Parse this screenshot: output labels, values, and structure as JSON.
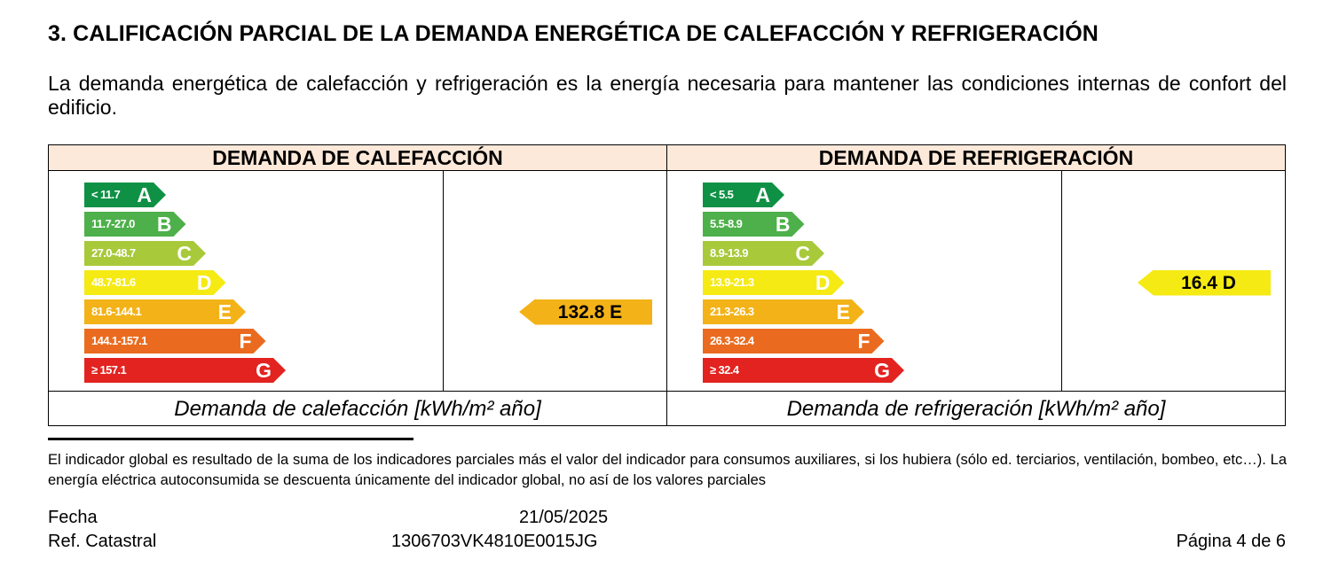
{
  "section_title": "3. CALIFICACIÓN PARCIAL DE LA DEMANDA ENERGÉTICA DE CALEFACCIÓN Y REFRIGERACIÓN",
  "intro": "La demanda energética de calefacción y refrigeración es la energía necesaria para mantener las condiciones internas de confort del edificio.",
  "heating": {
    "header": "DEMANDA DE CALEFACCIÓN",
    "footer": "Demanda de calefacción [kWh/m² año]",
    "bands": [
      {
        "range": "< 11.7",
        "letter": "A",
        "color": "#0f9145"
      },
      {
        "range": "11.7-27.0",
        "letter": "B",
        "color": "#4db04a"
      },
      {
        "range": "27.0-48.7",
        "letter": "C",
        "color": "#a8c93a"
      },
      {
        "range": "48.7-81.6",
        "letter": "D",
        "color": "#f5ea14"
      },
      {
        "range": "81.6-144.1",
        "letter": "E",
        "color": "#f3b217"
      },
      {
        "range": "144.1-157.1",
        "letter": "F",
        "color": "#ea6b1f"
      },
      {
        "range": "≥ 157.1",
        "letter": "G",
        "color": "#e2231f"
      }
    ],
    "rating": {
      "value": 132.8,
      "letter": "E",
      "label": "132.8 E",
      "color": "#f3b217"
    }
  },
  "cooling": {
    "header": "DEMANDA DE REFRIGERACIÓN",
    "footer": "Demanda de refrigeración [kWh/m² año]",
    "bands": [
      {
        "range": "< 5.5",
        "letter": "A",
        "color": "#0f9145"
      },
      {
        "range": "5.5-8.9",
        "letter": "B",
        "color": "#4db04a"
      },
      {
        "range": "8.9-13.9",
        "letter": "C",
        "color": "#a8c93a"
      },
      {
        "range": "13.9-21.3",
        "letter": "D",
        "color": "#f5ea14"
      },
      {
        "range": "21.3-26.3",
        "letter": "E",
        "color": "#f3b217"
      },
      {
        "range": "26.3-32.4",
        "letter": "F",
        "color": "#ea6b1f"
      },
      {
        "range": "≥ 32.4",
        "letter": "G",
        "color": "#e2231f"
      }
    ],
    "rating": {
      "value": 16.4,
      "letter": "D",
      "label": "16.4 D",
      "color": "#f5ea14"
    }
  },
  "note": "El indicador global es resultado de la suma de los indicadores parciales más el valor del indicador para consumos auxiliares, si los hubiera (sólo ed. terciarios, ventilación, bombeo, etc…). La energía eléctrica autoconsumida se descuenta únicamente del indicador global, no así de los valores parciales",
  "footer": {
    "date_label": "Fecha",
    "date_value": "21/05/2025",
    "ref_label": "Ref. Catastral",
    "ref_value": "1306703VK4810E0015JG",
    "page": "Página 4 de 6"
  }
}
